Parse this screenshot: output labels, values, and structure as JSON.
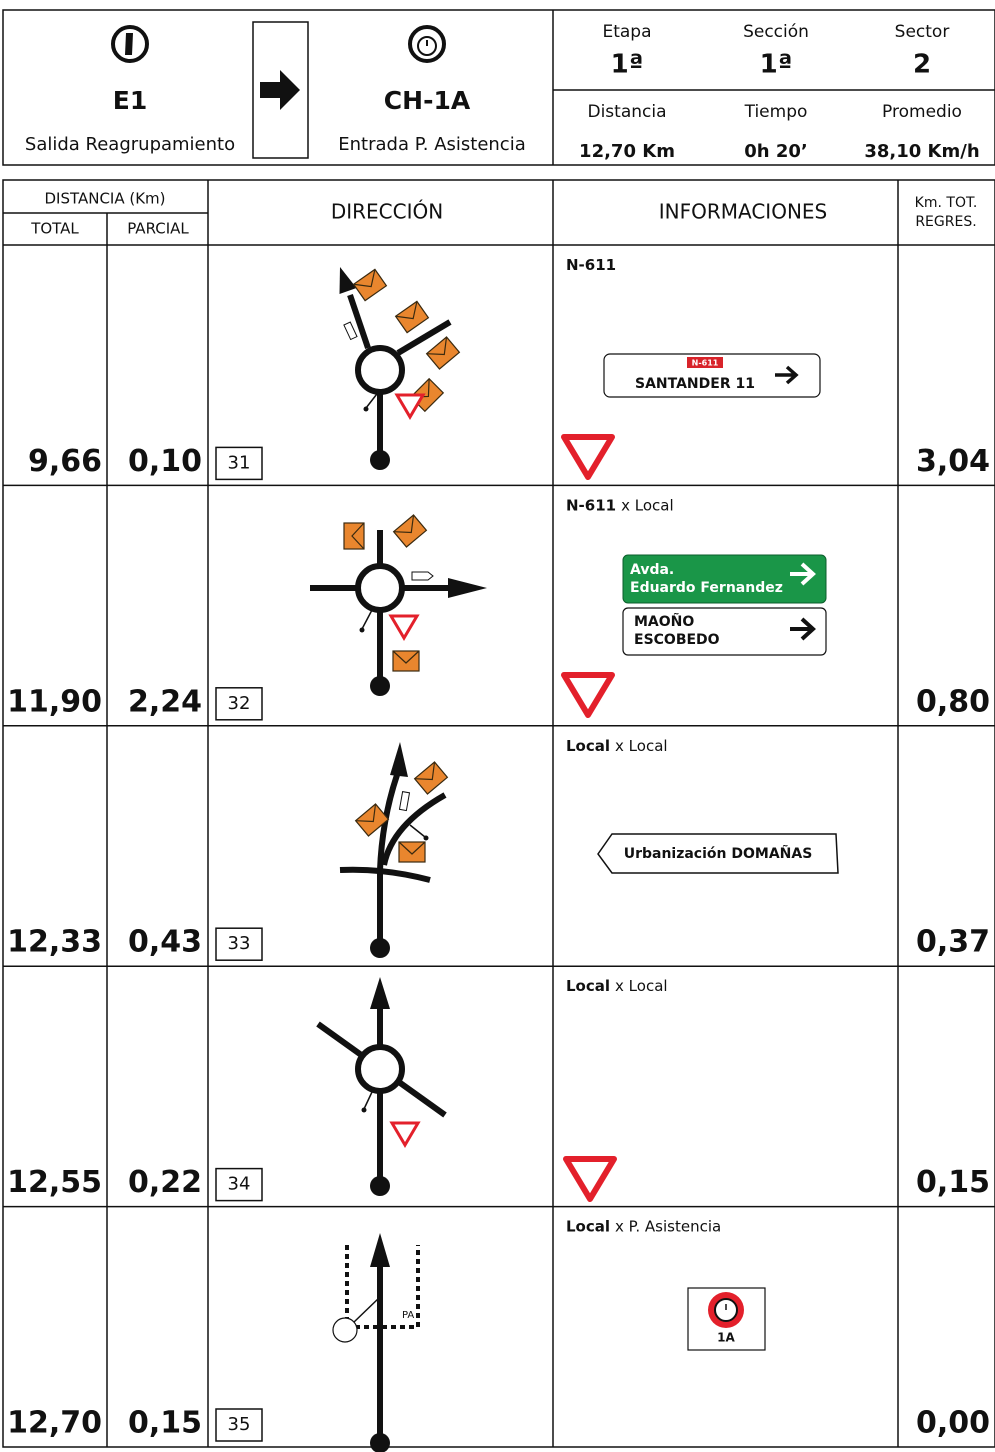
{
  "header": {
    "start": {
      "code": "E1",
      "label": "Salida Reagrupamiento"
    },
    "end": {
      "code": "CH-1A",
      "label": "Entrada P. Asistencia"
    },
    "stats": [
      {
        "label": "Etapa",
        "value": "1ª"
      },
      {
        "label": "Sección",
        "value": "1ª"
      },
      {
        "label": "Sector",
        "value": "2"
      },
      {
        "label": "Distancia",
        "value": "12,70 Km"
      },
      {
        "label": "Tiempo",
        "value": "0h 20’"
      },
      {
        "label": "Promedio",
        "value": "38,10 Km/h"
      }
    ]
  },
  "table": {
    "columns": {
      "distance": "DISTANCIA (Km)",
      "total": "TOTAL",
      "partial": "PARCIAL",
      "direction": "DIRECCIÓN",
      "info": "INFORMACIONES",
      "remaining": [
        "Km. TOT.",
        "REGRES."
      ]
    },
    "rows": [
      {
        "total": "9,66",
        "partial": "0,10",
        "number": "31",
        "road": "N-611",
        "sign": {
          "tag": "N-611",
          "text": "SANTANDER 11"
        },
        "remaining": "3,04"
      },
      {
        "total": "11,90",
        "partial": "2,24",
        "number": "32",
        "road": "N-611",
        "road_detail": "x Local",
        "signs": {
          "green": [
            "Avda.",
            "Eduardo Fernandez"
          ],
          "white": [
            "MAOÑO",
            "ESCOBEDO"
          ]
        },
        "remaining": "0,80"
      },
      {
        "total": "12,33",
        "partial": "0,43",
        "number": "33",
        "road": "Local",
        "road_detail": "x Local",
        "sign": {
          "text": "Urbanización DOMAÑAS"
        },
        "remaining": "0,37"
      },
      {
        "total": "12,55",
        "partial": "0,22",
        "number": "34",
        "road": "Local",
        "road_detail": "x Local",
        "remaining": "0,15"
      },
      {
        "total": "12,70",
        "partial": "0,15",
        "number": "35",
        "road": "Local",
        "road_detail": "x P. Asistencia",
        "control": "1A",
        "diagram_label": "PA",
        "remaining": "0,00"
      }
    ]
  }
}
